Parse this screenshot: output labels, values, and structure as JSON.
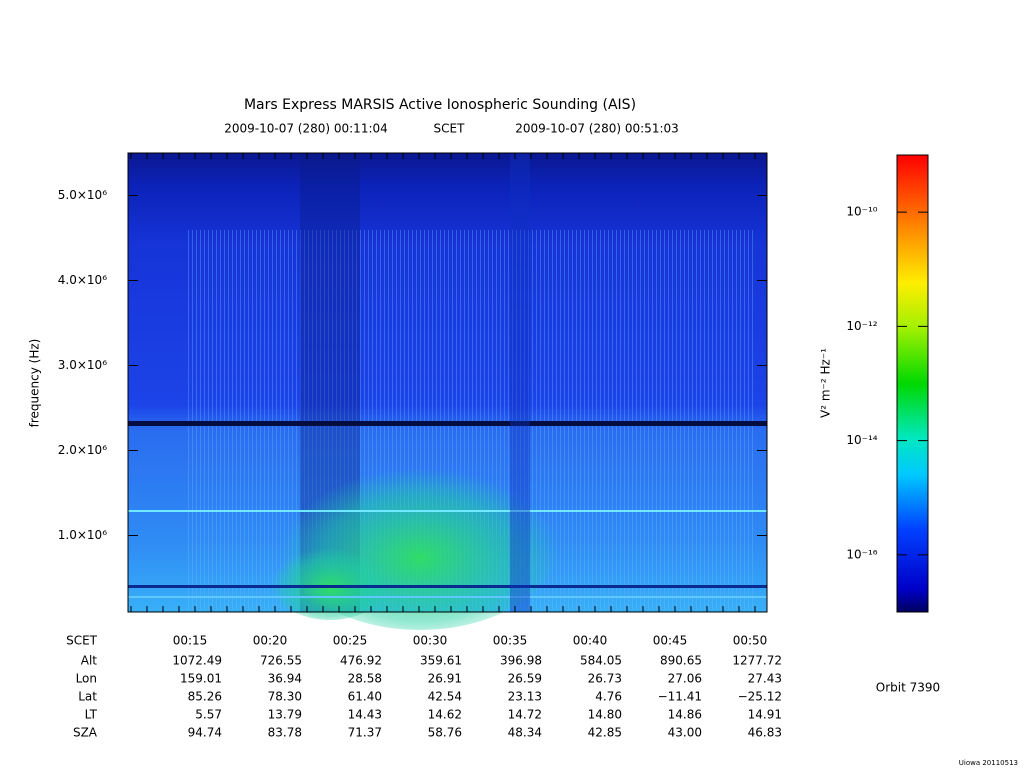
{
  "chart_data": {
    "type": "spectrogram",
    "title": "Mars Express MARSIS Active Ionospheric Sounding (AIS)",
    "subtitle": {
      "start": "2009-10-07 (280) 00:11:04",
      "timescale": "SCET",
      "end": "2009-10-07 (280) 00:51:03"
    },
    "ylabel": "frequency (Hz)",
    "ylim": [
      100000,
      5500000
    ],
    "yticks": [
      {
        "value": 1000000,
        "label": "1.0×10⁶"
      },
      {
        "value": 2000000,
        "label": "2.0×10⁶"
      },
      {
        "value": 3000000,
        "label": "3.0×10⁶"
      },
      {
        "value": 4000000,
        "label": "4.0×10⁶"
      },
      {
        "value": 5000000,
        "label": "5.0×10⁶"
      }
    ],
    "colorbar": {
      "label": "V² m⁻² Hz⁻¹",
      "log": true,
      "lim": [
        1e-17,
        1e-09
      ],
      "ticks": [
        {
          "value": 1e-10,
          "label": "10⁻¹⁰"
        },
        {
          "value": 1e-12,
          "label": "10⁻¹²"
        },
        {
          "value": 1e-14,
          "label": "10⁻¹⁴"
        },
        {
          "value": 1e-16,
          "label": "10⁻¹⁶"
        }
      ]
    },
    "ephemeris": {
      "header_label": "SCET",
      "columns": [
        "00:15",
        "00:20",
        "00:25",
        "00:30",
        "00:35",
        "00:40",
        "00:45",
        "00:50"
      ],
      "rows": [
        {
          "label": "Alt",
          "values": [
            "1072.49",
            "726.55",
            "476.92",
            "359.61",
            "396.98",
            "584.05",
            "890.65",
            "1277.72"
          ]
        },
        {
          "label": "Lon",
          "values": [
            "159.01",
            "36.94",
            "28.58",
            "26.91",
            "26.59",
            "26.73",
            "27.06",
            "27.43"
          ]
        },
        {
          "label": "Lat",
          "values": [
            "85.26",
            "78.30",
            "61.40",
            "42.54",
            "23.13",
            "4.76",
            "−11.41",
            "−25.12"
          ]
        },
        {
          "label": "LT",
          "values": [
            "5.57",
            "13.79",
            "14.43",
            "14.62",
            "14.72",
            "14.80",
            "14.86",
            "14.91"
          ]
        },
        {
          "label": "SZA",
          "values": [
            "94.74",
            "83.78",
            "71.37",
            "58.76",
            "48.34",
            "42.85",
            "43.00",
            "46.83"
          ]
        }
      ]
    },
    "orbit": "Orbit 7390",
    "credit": "Uiowa 20110513"
  }
}
